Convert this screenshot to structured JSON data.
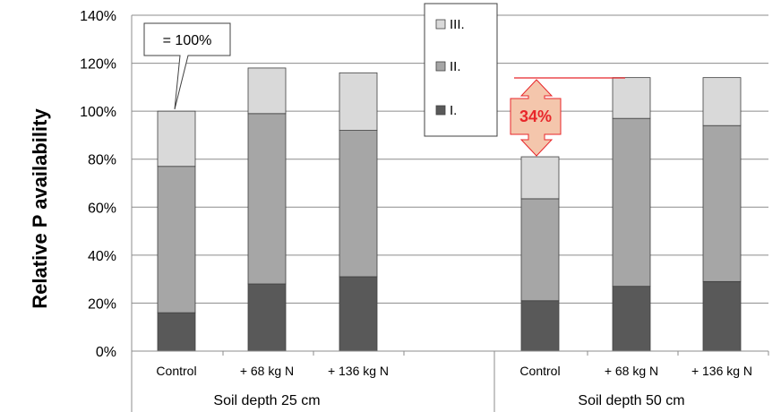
{
  "chart_data": {
    "type": "bar",
    "stacked": true,
    "ylabel": "Relative P availability",
    "ylim": [
      0,
      140
    ],
    "yticks": [
      "0%",
      "20%",
      "40%",
      "60%",
      "80%",
      "100%",
      "120%",
      "140%"
    ],
    "grid": true,
    "legend_position": "top-center",
    "groups": [
      {
        "label": "Soil depth 25 cm",
        "categories": [
          "Control",
          "+ 68 kg N",
          "+ 136 kg N"
        ]
      },
      {
        "label": "Soil depth 50 cm",
        "categories": [
          "Control",
          "+ 68 kg N",
          "+ 136 kg N"
        ]
      }
    ],
    "series": [
      {
        "name": "I.",
        "color": "#595959",
        "values": [
          16,
          28,
          31,
          21,
          27,
          29
        ]
      },
      {
        "name": "II.",
        "color": "#a6a6a6",
        "values": [
          61,
          71,
          61,
          42.5,
          70,
          65
        ]
      },
      {
        "name": "III.",
        "color": "#d9d9d9",
        "values": [
          23,
          19,
          24,
          17.5,
          17,
          20
        ]
      }
    ],
    "annotations": {
      "callout_text": "= 100%",
      "difference_label": "34%",
      "difference_color": "#e8262a"
    }
  }
}
